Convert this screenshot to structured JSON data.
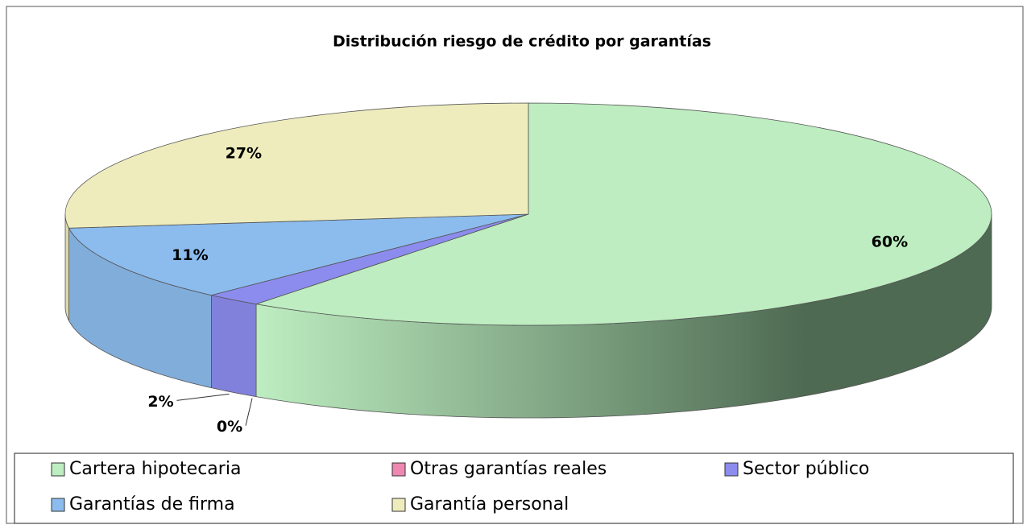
{
  "chart_data": {
    "type": "pie",
    "title": "Distribución riesgo de crédito por garantías",
    "categories": [
      "Cartera hipotecaria",
      "Otras garantías reales",
      "Sector público",
      "Garantías de firma",
      "Garantía personal"
    ],
    "values": [
      60,
      0,
      2,
      11,
      27
    ],
    "value_labels": [
      "60%",
      "0%",
      "2%",
      "11%",
      "27%"
    ],
    "colors": [
      "#bdedc0",
      "#ee88b0",
      "#8c8cee",
      "#8cbcee",
      "#eeecbc"
    ],
    "legend": "bottom"
  }
}
